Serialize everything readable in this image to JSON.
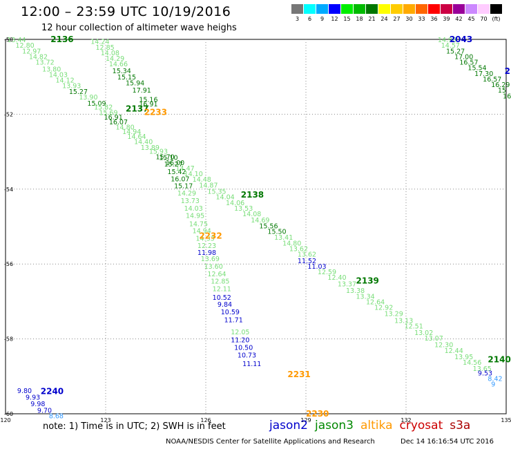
{
  "header": {
    "title": "12:00 – 23:59 UTC 10/19/2016",
    "subtitle": "12 hour collection of altimeter wave heighs"
  },
  "colorbar": {
    "labels": [
      "3",
      "6",
      "9",
      "12",
      "15",
      "18",
      "21",
      "24",
      "27",
      "30",
      "33",
      "36",
      "39",
      "42",
      "45",
      "70",
      "(ft)"
    ],
    "colors": [
      "#777777",
      "#00ffff",
      "#00aaff",
      "#0000ff",
      "#00ee00",
      "#00bb00",
      "#007700",
      "#ffff00",
      "#ffcc00",
      "#ffaa00",
      "#ff6600",
      "#ff0000",
      "#cc0044",
      "#990099",
      "#cc88ff",
      "#ffccff",
      "#000000"
    ]
  },
  "footer": {
    "note": "note: 1) Time is in UTC; 2) SWH is in feet",
    "satellites": [
      {
        "name": "jason2",
        "color": "#0000cc"
      },
      {
        "name": "jason3",
        "color": "#008800"
      },
      {
        "name": "altika",
        "color": "#ff9900"
      },
      {
        "name": "cryosat",
        "color": "#cc0000"
      },
      {
        "name": "s3a",
        "color": "#aa0000"
      }
    ],
    "credit": "NOAA/NESDIS Center for Satellite Applications and Research",
    "timestamp": "Dec 14 16:16:54 UTC 2016"
  },
  "chart_data": {
    "type": "scatter",
    "xlabel": "",
    "ylabel": "",
    "xlim": [
      120,
      135
    ],
    "ylim": [
      -60,
      -50
    ],
    "xticks": [
      120,
      123,
      126,
      129,
      132,
      135
    ],
    "yticks": [
      -50,
      -52,
      -54,
      -56,
      -58,
      -60
    ],
    "grid": true,
    "time_labels": [
      {
        "label": "2136",
        "lon": 121.35,
        "lat": -50.0,
        "color": "#007700"
      },
      {
        "label": "2137",
        "lon": 123.6,
        "lat": -51.85,
        "color": "#007700"
      },
      {
        "label": "2233",
        "lon": 124.15,
        "lat": -51.95,
        "color": "#ff9900"
      },
      {
        "label": "2138",
        "lon": 127.05,
        "lat": -54.15,
        "color": "#007700"
      },
      {
        "label": "2232",
        "lon": 125.8,
        "lat": -55.25,
        "color": "#ff9900"
      },
      {
        "label": "2139",
        "lon": 130.5,
        "lat": -56.45,
        "color": "#007700"
      },
      {
        "label": "2140",
        "lon": 134.45,
        "lat": -58.55,
        "color": "#007700"
      },
      {
        "label": "2231",
        "lon": 128.45,
        "lat": -58.95,
        "color": "#ff9900"
      },
      {
        "label": "2230",
        "lon": 129.0,
        "lat": -60.0,
        "color": "#ff9900"
      },
      {
        "label": "2240",
        "lon": 121.05,
        "lat": -59.4,
        "color": "#0000cc"
      },
      {
        "label": "2043",
        "lon": 133.3,
        "lat": -50.0,
        "color": "#0000cc"
      },
      {
        "label": "2",
        "lon": 134.95,
        "lat": -50.85,
        "color": "#0000cc"
      }
    ],
    "series": [
      {
        "name": "jason3",
        "points": [
          [
            120.05,
            -50.0,
            "13.44",
            "#77dd77"
          ],
          [
            120.3,
            -50.15,
            "12.80",
            "#77dd77"
          ],
          [
            120.5,
            -50.3,
            "12.97",
            "#77dd77"
          ],
          [
            120.7,
            -50.45,
            "14.82",
            "#77dd77"
          ],
          [
            120.9,
            -50.6,
            "13.72",
            "#77dd77"
          ],
          [
            121.1,
            -50.78,
            "13.80",
            "#77dd77"
          ],
          [
            121.3,
            -50.93,
            "14.03",
            "#77dd77"
          ],
          [
            121.5,
            -51.08,
            "14.12",
            "#77dd77"
          ],
          [
            121.7,
            -51.23,
            "13.93",
            "#77dd77"
          ],
          [
            121.9,
            -51.38,
            "15.27",
            "#007700"
          ],
          [
            122.2,
            -51.53,
            "13.90",
            "#77dd77"
          ],
          [
            122.45,
            -51.7,
            "15.09",
            "#007700"
          ],
          [
            122.65,
            -51.8,
            "15.82",
            "#77dd77"
          ],
          [
            122.8,
            -51.95,
            "15.69",
            "#77dd77"
          ],
          [
            122.95,
            -52.07,
            "16.91",
            "#007700"
          ],
          [
            123.1,
            -52.2,
            "16.07",
            "#007700"
          ],
          [
            123.3,
            -52.33,
            "14.80",
            "#77dd77"
          ],
          [
            123.5,
            -52.45,
            "14.94",
            "#77dd77"
          ],
          [
            123.65,
            -52.58,
            "14.64",
            "#77dd77"
          ],
          [
            123.85,
            -52.72,
            "14.40",
            "#77dd77"
          ],
          [
            124.05,
            -52.88,
            "13.89",
            "#77dd77"
          ],
          [
            124.3,
            -52.98,
            "15.93",
            "#77dd77"
          ],
          [
            124.5,
            -53.13,
            "15.70",
            "#007700"
          ],
          [
            124.8,
            -53.28,
            "16.00",
            "#007700"
          ],
          [
            125.1,
            -53.43,
            "14.47",
            "#77dd77"
          ],
          [
            125.35,
            -53.58,
            "14.10",
            "#77dd77"
          ],
          [
            125.6,
            -53.73,
            "14.48",
            "#77dd77"
          ],
          [
            125.8,
            -53.88,
            "14.87",
            "#77dd77"
          ],
          [
            126.05,
            -54.05,
            "15.35",
            "#77dd77"
          ],
          [
            126.3,
            -54.2,
            "14.04",
            "#77dd77"
          ],
          [
            126.6,
            -54.35,
            "14.06",
            "#77dd77"
          ],
          [
            126.85,
            -54.5,
            "13.53",
            "#77dd77"
          ],
          [
            127.1,
            -54.65,
            "14.08",
            "#77dd77"
          ],
          [
            127.35,
            -54.82,
            "14.69",
            "#77dd77"
          ],
          [
            127.6,
            -54.97,
            "15.56",
            "#007700"
          ],
          [
            127.85,
            -55.12,
            "15.50",
            "#007700"
          ],
          [
            128.05,
            -55.28,
            "13.41",
            "#77dd77"
          ],
          [
            128.3,
            -55.43,
            "14.80",
            "#77dd77"
          ],
          [
            128.5,
            -55.58,
            "13.62",
            "#77dd77"
          ],
          [
            128.75,
            -55.73,
            "13.62",
            "#77dd77"
          ],
          [
            129.35,
            -56.2,
            "12.59",
            "#77dd77"
          ],
          [
            129.65,
            -56.35,
            "12.40",
            "#77dd77"
          ],
          [
            129.95,
            -56.52,
            "13.37",
            "#77dd77"
          ],
          [
            130.2,
            -56.7,
            "13.38",
            "#77dd77"
          ],
          [
            130.5,
            -56.85,
            "13.34",
            "#77dd77"
          ],
          [
            130.8,
            -57.0,
            "12.64",
            "#77dd77"
          ],
          [
            131.05,
            -57.15,
            "12.92",
            "#77dd77"
          ],
          [
            131.35,
            -57.32,
            "13.29",
            "#77dd77"
          ],
          [
            131.65,
            -57.5,
            "13.13",
            "#77dd77"
          ],
          [
            131.95,
            -57.65,
            "12.51",
            "#77dd77"
          ],
          [
            132.25,
            -57.82,
            "13.02",
            "#77dd77"
          ],
          [
            132.55,
            -57.97,
            "13.07",
            "#77dd77"
          ],
          [
            132.85,
            -58.15,
            "12.30",
            "#77dd77"
          ],
          [
            133.15,
            -58.3,
            "12.44",
            "#77dd77"
          ],
          [
            133.45,
            -58.47,
            "13.95",
            "#77dd77"
          ],
          [
            133.7,
            -58.62,
            "14.56",
            "#77dd77"
          ],
          [
            134.0,
            -58.78,
            "13.65",
            "#77dd77"
          ]
        ]
      },
      {
        "name": "jason3 (descending 2137)",
        "points": [
          [
            122.55,
            -50.05,
            "14.24",
            "#77dd77"
          ],
          [
            122.7,
            -50.2,
            "12.85",
            "#77dd77"
          ],
          [
            122.85,
            -50.35,
            "14.08",
            "#77dd77"
          ],
          [
            123.0,
            -50.5,
            "14.29",
            "#77dd77"
          ],
          [
            123.1,
            -50.65,
            "14.66",
            "#77dd77"
          ],
          [
            123.2,
            -50.83,
            "15.34",
            "#007700"
          ],
          [
            123.35,
            -51.0,
            "15.15",
            "#007700"
          ],
          [
            123.6,
            -51.15,
            "15.94",
            "#007700"
          ],
          [
            123.8,
            -51.35,
            "17.91",
            "#007700"
          ],
          [
            124.0,
            -51.6,
            "15.16",
            "#007700"
          ],
          [
            124.0,
            -51.72,
            "16.91",
            "#007700"
          ],
          [
            124.6,
            -53.15,
            "15.10",
            "#007700"
          ],
          [
            124.75,
            -53.32,
            "15.27",
            "#007700"
          ],
          [
            124.85,
            -53.52,
            "15.42",
            "#007700"
          ],
          [
            124.95,
            -53.72,
            "16.07",
            "#007700"
          ],
          [
            125.05,
            -53.9,
            "15.17",
            "#007700"
          ],
          [
            125.15,
            -54.1,
            "14.29",
            "#77dd77"
          ],
          [
            125.25,
            -54.3,
            "13.73",
            "#77dd77"
          ],
          [
            125.35,
            -54.5,
            "14.03",
            "#77dd77"
          ],
          [
            125.4,
            -54.7,
            "14.95",
            "#77dd77"
          ],
          [
            125.5,
            -54.92,
            "14.75",
            "#77dd77"
          ],
          [
            125.6,
            -55.1,
            "14.94",
            "#77dd77"
          ],
          [
            125.7,
            -55.3,
            "14.33",
            "#77dd77"
          ],
          [
            125.75,
            -55.5,
            "12.23",
            "#77dd77"
          ],
          [
            125.85,
            -55.85,
            "13.69",
            "#77dd77"
          ],
          [
            125.95,
            -56.05,
            "13.60",
            "#77dd77"
          ],
          [
            126.05,
            -56.25,
            "12.64",
            "#77dd77"
          ],
          [
            126.15,
            -56.45,
            "12.85",
            "#77dd77"
          ],
          [
            126.2,
            -56.65,
            "12.11",
            "#77dd77"
          ],
          [
            126.75,
            -57.8,
            "12.05",
            "#77dd77"
          ]
        ]
      },
      {
        "name": "jason2",
        "points": [
          [
            128.75,
            -55.9,
            "11.52",
            "#0000cc"
          ],
          [
            129.05,
            -56.05,
            "11.03",
            "#0000cc"
          ],
          [
            125.75,
            -55.68,
            "11.98",
            "#0000cc"
          ],
          [
            126.2,
            -56.88,
            "10.52",
            "#0000cc"
          ],
          [
            126.35,
            -57.07,
            "9.84",
            "#0000cc"
          ],
          [
            126.45,
            -57.27,
            "10.59",
            "#0000cc"
          ],
          [
            126.55,
            -57.48,
            "11.71",
            "#0000cc"
          ],
          [
            126.75,
            -58.02,
            "11.20",
            "#0000cc"
          ],
          [
            126.85,
            -58.22,
            "10.50",
            "#0000cc"
          ],
          [
            126.95,
            -58.42,
            "10.73",
            "#0000cc"
          ],
          [
            127.1,
            -58.65,
            "11.11",
            "#0000cc"
          ],
          [
            120.35,
            -59.37,
            "9.80",
            "#0000cc"
          ],
          [
            120.6,
            -59.55,
            "9.93",
            "#0000cc"
          ],
          [
            120.75,
            -59.72,
            "9.98",
            "#0000cc"
          ],
          [
            120.95,
            -59.9,
            "9.70",
            "#0000cc"
          ],
          [
            134.15,
            -58.9,
            "9.53",
            "#0000cc"
          ]
        ]
      },
      {
        "name": "jason2 (light blue)",
        "points": [
          [
            121.3,
            -60.05,
            "8.68",
            "#3399ff"
          ],
          [
            134.45,
            -59.05,
            "8.42",
            "#3399ff"
          ],
          [
            134.55,
            -59.2,
            "9",
            "#3399ff"
          ]
        ]
      },
      {
        "name": "jason3 (north-east)",
        "points": [
          [
            132.95,
            -50.0,
            "14.98",
            "#77dd77"
          ],
          [
            133.05,
            -50.15,
            "14.57",
            "#77dd77"
          ],
          [
            133.2,
            -50.3,
            "15.27",
            "#007700"
          ],
          [
            133.45,
            -50.45,
            "17.00",
            "#007700"
          ],
          [
            133.6,
            -50.6,
            "16.57",
            "#007700"
          ],
          [
            133.85,
            -50.75,
            "15.54",
            "#007700"
          ],
          [
            134.05,
            -50.9,
            "17.30",
            "#007700"
          ],
          [
            134.3,
            -51.05,
            "16.57",
            "#007700"
          ],
          [
            134.55,
            -51.2,
            "16.29",
            "#007700"
          ],
          [
            134.75,
            -51.35,
            "15",
            "#007700"
          ],
          [
            134.9,
            -51.5,
            "16",
            "#007700"
          ]
        ]
      }
    ]
  }
}
